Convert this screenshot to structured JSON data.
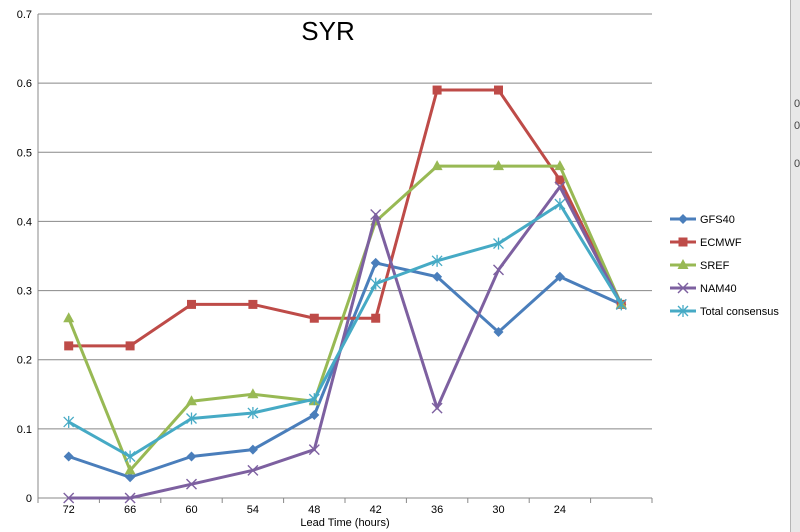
{
  "edge_fragments": [
    "0",
    "0",
    "0"
  ],
  "colors": {
    "gridline": "#888888",
    "axis": "#888888"
  },
  "chart_data": {
    "type": "line",
    "title": "SYR",
    "xlabel": "Lead Time (hours)",
    "ylabel": "",
    "categories": [
      "72",
      "66",
      "60",
      "54",
      "48",
      "42",
      "36",
      "30",
      "24",
      ""
    ],
    "ylim": [
      0,
      0.7
    ],
    "yticks": [
      "0",
      "0.1",
      "0.2",
      "0.3",
      "0.4",
      "0.5",
      "0.6",
      "0.7"
    ],
    "grid": true,
    "legend_position": "right",
    "series": [
      {
        "name": "GFS40",
        "color": "#4a7ebb",
        "marker": "diamond",
        "values": [
          0.06,
          0.03,
          0.06,
          0.07,
          0.12,
          0.34,
          0.32,
          0.24,
          0.32,
          0.28
        ]
      },
      {
        "name": "ECMWF",
        "color": "#be4b48",
        "marker": "square",
        "values": [
          0.22,
          0.22,
          0.28,
          0.28,
          0.26,
          0.26,
          0.59,
          0.59,
          0.46,
          0.28
        ]
      },
      {
        "name": "SREF",
        "color": "#98b954",
        "marker": "triangle",
        "values": [
          0.26,
          0.04,
          0.14,
          0.15,
          0.14,
          0.4,
          0.48,
          0.48,
          0.48,
          0.28
        ]
      },
      {
        "name": "NAM40",
        "color": "#7d60a0",
        "marker": "x",
        "values": [
          0.0,
          0.0,
          0.02,
          0.04,
          0.07,
          0.41,
          0.13,
          0.33,
          0.45,
          0.28
        ]
      },
      {
        "name": "Total consensus",
        "color": "#46aac5",
        "marker": "star",
        "values": [
          0.11,
          0.06,
          0.115,
          0.123,
          0.143,
          0.31,
          0.343,
          0.368,
          0.425,
          0.28
        ]
      }
    ]
  }
}
